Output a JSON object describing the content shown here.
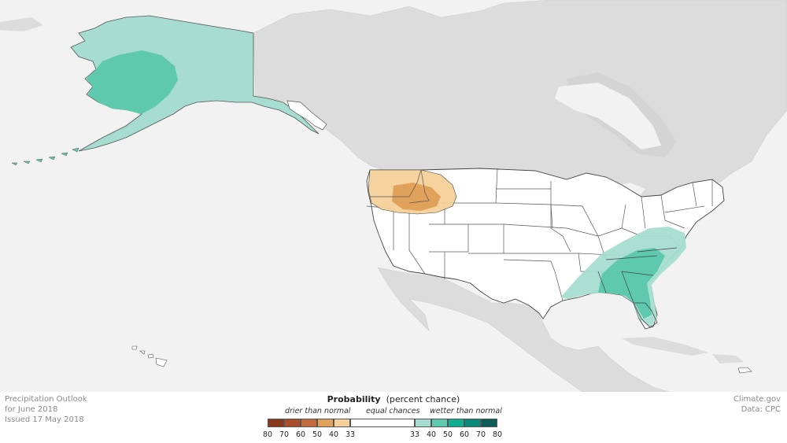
{
  "outlook": {
    "title": "Precipitation Outlook",
    "period": "for June 2018",
    "issued": "Issued 17 May 2018"
  },
  "credits": {
    "source": "Climate.gov",
    "data": "Data: CPC"
  },
  "legend": {
    "title_bold": "Probability",
    "title_rest": "(percent chance)",
    "drier_label": "drier than normal",
    "equal_label": "equal chances",
    "wetter_label": "wetter than normal",
    "dry_colors": [
      "#8a3a1c",
      "#a94e2c",
      "#c4693a",
      "#e0a25a",
      "#f5d09a"
    ],
    "equal_color": "#ffffff",
    "wet_colors": [
      "#a6ddd0",
      "#5ec9ad",
      "#10ad92",
      "#0a8a78",
      "#0a5e57"
    ],
    "ticks_dry": [
      "80",
      "70",
      "60",
      "50",
      "40",
      "33"
    ],
    "ticks_wet": [
      "33",
      "40",
      "50",
      "60",
      "70",
      "80"
    ]
  },
  "regions": [
    {
      "name": "alaska",
      "category": "wetter",
      "levels": [
        "33-40",
        "40-50"
      ]
    },
    {
      "name": "pacific-northwest",
      "category": "drier",
      "levels": [
        "33-40",
        "40-50"
      ]
    },
    {
      "name": "southeast",
      "category": "wetter",
      "levels": [
        "33-40",
        "40-50"
      ]
    }
  ]
}
